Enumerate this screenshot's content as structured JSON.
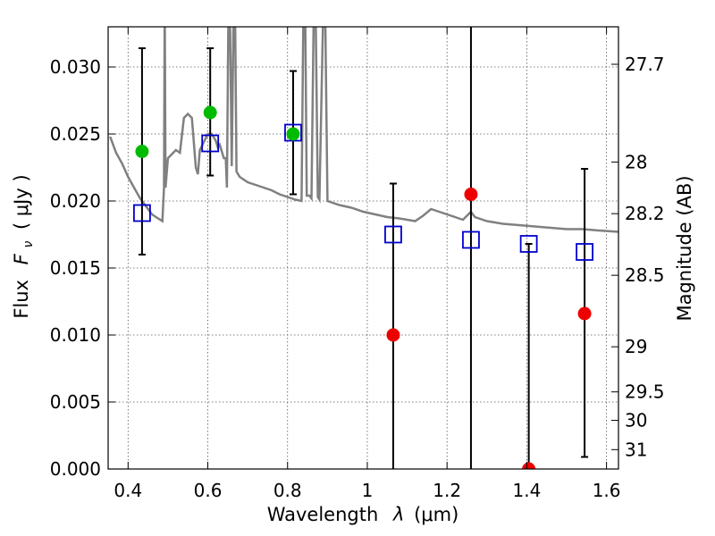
{
  "chart_data": {
    "type": "scatter",
    "title": "",
    "xlabel": "Wavelength",
    "xlabel_symbol": "λ",
    "xlabel_unit": "(μm)",
    "ylabel": "Flux",
    "ylabel_symbol": "F",
    "ylabel_subscript": "ν",
    "ylabel_unit": "( μJy )",
    "y2label": "Magnitude (AB)",
    "xlim": [
      0.35,
      1.63
    ],
    "ylim": [
      0.0,
      0.033
    ],
    "grid": true,
    "x_ticks": [
      {
        "value": 0.4,
        "label": "0.4"
      },
      {
        "value": 0.6,
        "label": "0.6"
      },
      {
        "value": 0.8,
        "label": "0.8"
      },
      {
        "value": 1.0,
        "label": "1"
      },
      {
        "value": 1.2,
        "label": "1.2"
      },
      {
        "value": 1.4,
        "label": "1.4"
      },
      {
        "value": 1.6,
        "label": "1.6"
      }
    ],
    "y_ticks": [
      {
        "value": 0.0,
        "label": "0.000"
      },
      {
        "value": 0.005,
        "label": "0.005"
      },
      {
        "value": 0.01,
        "label": "0.010"
      },
      {
        "value": 0.015,
        "label": "0.015"
      },
      {
        "value": 0.02,
        "label": "0.020"
      },
      {
        "value": 0.025,
        "label": "0.025"
      },
      {
        "value": 0.03,
        "label": "0.030"
      }
    ],
    "y2_ticks": [
      {
        "mag": 27.7,
        "label": "27.7"
      },
      {
        "mag": 28.0,
        "label": "28"
      },
      {
        "mag": 28.2,
        "label": "28.2"
      },
      {
        "mag": 28.5,
        "label": "28.5"
      },
      {
        "mag": 29.0,
        "label": "29"
      },
      {
        "mag": 29.5,
        "label": "29.5"
      },
      {
        "mag": 30.0,
        "label": "30"
      },
      {
        "mag": 31.0,
        "label": "31"
      }
    ],
    "colors": {
      "model": "#808080",
      "model_photometry": "#0000cc",
      "optical_detections": "#00bb00",
      "nir_detections": "#ee0000",
      "error_bars": "#000000"
    },
    "model_spectrum": [
      [
        0.355,
        0.0248
      ],
      [
        0.37,
        0.0236
      ],
      [
        0.385,
        0.0228
      ],
      [
        0.4,
        0.0218
      ],
      [
        0.415,
        0.021
      ],
      [
        0.43,
        0.0202
      ],
      [
        0.445,
        0.0196
      ],
      [
        0.46,
        0.019
      ],
      [
        0.475,
        0.0187
      ],
      [
        0.486,
        0.0185
      ],
      [
        0.49,
        0.021
      ],
      [
        0.492,
        0.035
      ],
      [
        0.494,
        0.021
      ],
      [
        0.5,
        0.0232
      ],
      [
        0.51,
        0.0235
      ],
      [
        0.52,
        0.0238
      ],
      [
        0.53,
        0.0236
      ],
      [
        0.54,
        0.0262
      ],
      [
        0.55,
        0.0265
      ],
      [
        0.56,
        0.0262
      ],
      [
        0.57,
        0.0225
      ],
      [
        0.575,
        0.022
      ],
      [
        0.58,
        0.0238
      ],
      [
        0.59,
        0.0244
      ],
      [
        0.6,
        0.025
      ],
      [
        0.61,
        0.025
      ],
      [
        0.62,
        0.0245
      ],
      [
        0.625,
        0.024
      ],
      [
        0.63,
        0.0242
      ],
      [
        0.64,
        0.0232
      ],
      [
        0.645,
        0.0232
      ],
      [
        0.648,
        0.021
      ],
      [
        0.652,
        0.035
      ],
      [
        0.655,
        0.035
      ],
      [
        0.66,
        0.0226
      ],
      [
        0.665,
        0.035
      ],
      [
        0.668,
        0.035
      ],
      [
        0.672,
        0.0222
      ],
      [
        0.68,
        0.0218
      ],
      [
        0.69,
        0.0216
      ],
      [
        0.7,
        0.0214
      ],
      [
        0.72,
        0.0212
      ],
      [
        0.74,
        0.021
      ],
      [
        0.76,
        0.0208
      ],
      [
        0.78,
        0.0205
      ],
      [
        0.8,
        0.0203
      ],
      [
        0.82,
        0.0201
      ],
      [
        0.835,
        0.02
      ],
      [
        0.84,
        0.035
      ],
      [
        0.844,
        0.035
      ],
      [
        0.848,
        0.0204
      ],
      [
        0.855,
        0.0204
      ],
      [
        0.86,
        0.0202
      ],
      [
        0.866,
        0.035
      ],
      [
        0.87,
        0.035
      ],
      [
        0.876,
        0.0203
      ],
      [
        0.88,
        0.0201
      ],
      [
        0.89,
        0.035
      ],
      [
        0.894,
        0.035
      ],
      [
        0.9,
        0.02
      ],
      [
        0.93,
        0.0197
      ],
      [
        0.96,
        0.0195
      ],
      [
        0.99,
        0.0192
      ],
      [
        1.02,
        0.019
      ],
      [
        1.05,
        0.0188
      ],
      [
        1.08,
        0.0187
      ],
      [
        1.1,
        0.0186
      ],
      [
        1.12,
        0.0185
      ],
      [
        1.14,
        0.0189
      ],
      [
        1.16,
        0.0194
      ],
      [
        1.18,
        0.0192
      ],
      [
        1.2,
        0.019
      ],
      [
        1.22,
        0.0188
      ],
      [
        1.24,
        0.0186
      ],
      [
        1.26,
        0.0192
      ],
      [
        1.27,
        0.0188
      ],
      [
        1.3,
        0.0185
      ],
      [
        1.34,
        0.0183
      ],
      [
        1.38,
        0.0182
      ],
      [
        1.42,
        0.0181
      ],
      [
        1.46,
        0.018
      ],
      [
        1.5,
        0.0179
      ],
      [
        1.54,
        0.0179
      ],
      [
        1.58,
        0.0178
      ],
      [
        1.63,
        0.0177
      ]
    ],
    "model_photometry": [
      {
        "x": 0.435,
        "y": 0.0191
      },
      {
        "x": 0.606,
        "y": 0.0243
      },
      {
        "x": 0.814,
        "y": 0.0251
      },
      {
        "x": 1.065,
        "y": 0.0175
      },
      {
        "x": 1.26,
        "y": 0.0171
      },
      {
        "x": 1.405,
        "y": 0.0168
      },
      {
        "x": 1.545,
        "y": 0.0162
      }
    ],
    "observed": [
      {
        "x": 0.435,
        "y": 0.0237,
        "ylow": 0.016,
        "yhigh": 0.0314,
        "group": "optical_detections"
      },
      {
        "x": 0.606,
        "y": 0.0266,
        "ylow": 0.0219,
        "yhigh": 0.0314,
        "group": "optical_detections"
      },
      {
        "x": 0.814,
        "y": 0.025,
        "ylow": 0.0205,
        "yhigh": 0.0297,
        "group": "optical_detections"
      },
      {
        "x": 1.065,
        "y": 0.01,
        "ylow": 0.0,
        "yhigh": 0.0213,
        "group": "nir_detections"
      },
      {
        "x": 1.26,
        "y": 0.0205,
        "ylow": 0.0,
        "yhigh": 0.033,
        "group": "nir_detections"
      },
      {
        "x": 1.405,
        "y": 0.0,
        "ylow": 0.0,
        "yhigh": 0.0168,
        "group": "nir_detections"
      },
      {
        "x": 1.545,
        "y": 0.0116,
        "ylow": 0.0009,
        "yhigh": 0.0224,
        "group": "nir_detections"
      }
    ]
  }
}
